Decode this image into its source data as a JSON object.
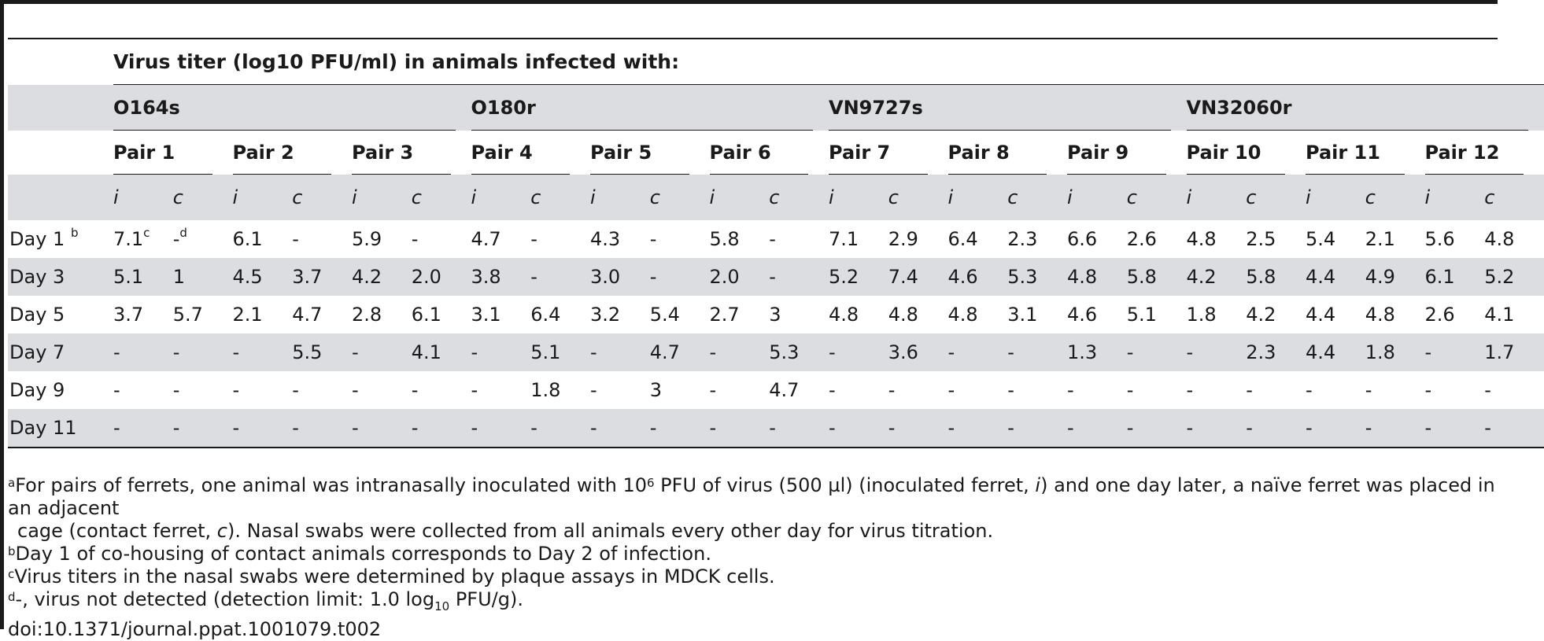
{
  "caption": "Virus titer (log10 PFU/ml) in animals infected with:",
  "strains": [
    "O164s",
    "O180r",
    "VN9727s",
    "VN32060r"
  ],
  "pairs": [
    "Pair 1",
    "Pair 2",
    "Pair 3",
    "Pair 4",
    "Pair 5",
    "Pair 6",
    "Pair 7",
    "Pair 8",
    "Pair 9",
    "Pair 10",
    "Pair 11",
    "Pair 12"
  ],
  "ic": {
    "i": "i",
    "c": "c"
  },
  "rows": [
    {
      "label": "Day 1",
      "label_sup": "b",
      "values": [
        "7.1",
        "-",
        "6.1",
        "-",
        "5.9",
        "-",
        "4.7",
        "-",
        "4.3",
        "-",
        "5.8",
        "-",
        "7.1",
        "2.9",
        "6.4",
        "2.3",
        "6.6",
        "2.6",
        "4.8",
        "2.5",
        "5.4",
        "2.1",
        "5.6",
        "4.8"
      ],
      "sup0": "c",
      "sup1": "d"
    },
    {
      "label": "Day 3",
      "values": [
        "5.1",
        "1",
        "4.5",
        "3.7",
        "4.2",
        "2.0",
        "3.8",
        "-",
        "3.0",
        "-",
        "2.0",
        "-",
        "5.2",
        "7.4",
        "4.6",
        "5.3",
        "4.8",
        "5.8",
        "4.2",
        "5.8",
        "4.4",
        "4.9",
        "6.1",
        "5.2"
      ]
    },
    {
      "label": "Day 5",
      "values": [
        "3.7",
        "5.7",
        "2.1",
        "4.7",
        "2.8",
        "6.1",
        "3.1",
        "6.4",
        "3.2",
        "5.4",
        "2.7",
        "3",
        "4.8",
        "4.8",
        "4.8",
        "3.1",
        "4.6",
        "5.1",
        "1.8",
        "4.2",
        "4.4",
        "4.8",
        "2.6",
        "4.1"
      ]
    },
    {
      "label": "Day 7",
      "values": [
        "-",
        "-",
        "-",
        "5.5",
        "-",
        "4.1",
        "-",
        "5.1",
        "-",
        "4.7",
        "-",
        "5.3",
        "-",
        "3.6",
        "-",
        "-",
        "1.3",
        "-",
        "-",
        "2.3",
        "4.4",
        "1.8",
        "-",
        "1.7"
      ]
    },
    {
      "label": "Day 9",
      "values": [
        "-",
        "-",
        "-",
        "-",
        "-",
        "-",
        "-",
        "1.8",
        "-",
        "3",
        "-",
        "4.7",
        "-",
        "-",
        "-",
        "-",
        "-",
        "-",
        "-",
        "-",
        "-",
        "-",
        "-",
        "-"
      ]
    },
    {
      "label": "Day 11",
      "values": [
        "-",
        "-",
        "-",
        "-",
        "-",
        "-",
        "-",
        "-",
        "-",
        "-",
        "-",
        "-",
        "-",
        "-",
        "-",
        "-",
        "-",
        "-",
        "-",
        "-",
        "-",
        "-",
        "-",
        "-"
      ]
    }
  ],
  "footnotes": {
    "a": {
      "mark": "a",
      "part1": "For pairs of ferrets, one animal was intranasally inoculated with 10",
      "exp": "6",
      "part2": " PFU of virus (500 µl) (inoculated ferret, ",
      "i": "i",
      "part3": ") and one day later, a naïve ferret was placed in an adjacent",
      "line2a": "cage (contact ferret, ",
      "c": "c",
      "line2b": "). Nasal swabs were collected from all animals every other day for virus titration."
    },
    "b": {
      "mark": "b",
      "text": "Day 1 of co-housing of contact animals corresponds to Day 2 of infection."
    },
    "c": {
      "mark": "c",
      "text": "Virus titers in the nasal swabs were determined by plaque assays in MDCK cells."
    },
    "d": {
      "mark": "d",
      "text1": "-, virus not detected (detection limit: 1.0 log",
      "sub": "10",
      "text2": " PFU/g)."
    }
  },
  "doi": "doi:10.1371/journal.ppat.1001079.t002"
}
